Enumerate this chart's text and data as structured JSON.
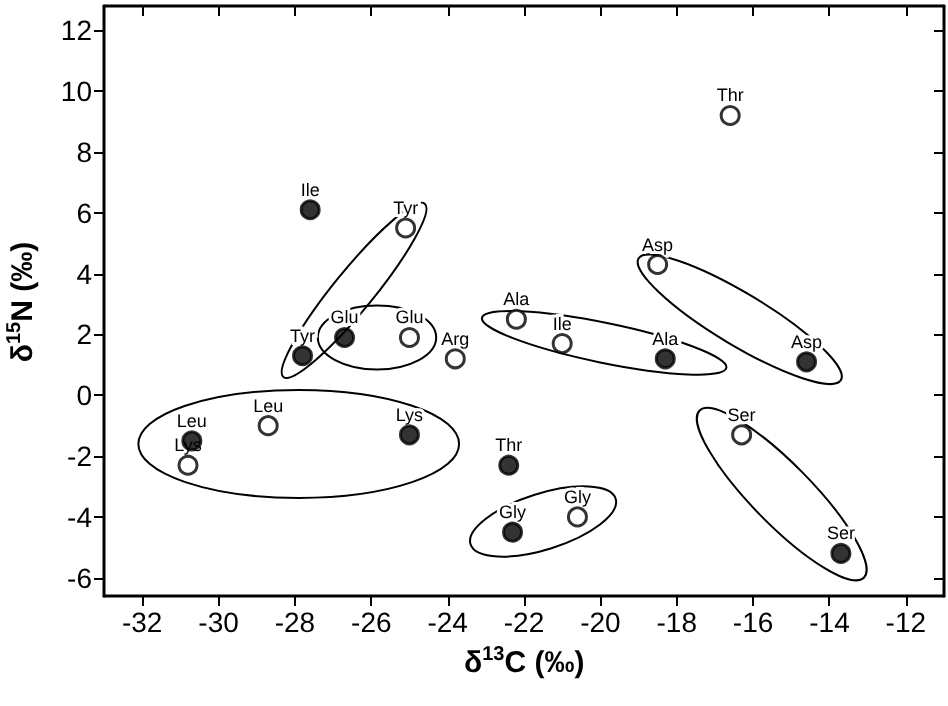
{
  "chart_data": {
    "type": "scatter",
    "xlabel": "δ$^{13}$C (‰)",
    "ylabel": "δ$^{15}$N (‰)",
    "xlim": [
      -33,
      -11
    ],
    "xticks": [
      -32,
      -30,
      -28,
      -26,
      -24,
      -22,
      -20,
      -18,
      -16,
      -14,
      -12
    ],
    "ylim": [
      -6.6,
      12.8
    ],
    "yticks": [
      -6,
      -4,
      -2,
      0,
      2,
      4,
      6,
      8,
      10,
      12
    ],
    "grid": false,
    "marker": "circle",
    "series": [
      {
        "color": "#000000",
        "x": [
          -27.6,
          -27.8,
          -26.7,
          -18.3,
          -14.6,
          -30.7,
          -25.0,
          -22.4,
          -22.3,
          -13.7
        ],
        "values": [
          6.1,
          1.3,
          1.9,
          1.2,
          1.1,
          -1.5,
          -1.3,
          -2.3,
          -4.5,
          -5.2
        ]
      },
      {
        "color": "#ffffff",
        "x": [
          -16.6,
          -25.1,
          -25.0,
          -23.8,
          -22.2,
          -21.0,
          -18.5,
          -28.7,
          -30.8,
          -20.6,
          -16.3
        ],
        "values": [
          9.2,
          5.5,
          1.9,
          1.2,
          2.5,
          1.7,
          4.3,
          -1.0,
          -2.3,
          -4.0,
          -1.3
        ]
      }
    ],
    "annotations": [
      {
        "text": "Ile",
        "x": -27.6,
        "y": 6.1
      },
      {
        "text": "Tyr",
        "x": -27.8,
        "y": 1.3
      },
      {
        "text": "Glu",
        "x": -26.7,
        "y": 1.9
      },
      {
        "text": "Ala",
        "x": -18.3,
        "y": 1.2
      },
      {
        "text": "Asp",
        "x": -14.6,
        "y": 1.1
      },
      {
        "text": "Leu",
        "x": -30.7,
        "y": -1.5
      },
      {
        "text": "Lys",
        "x": -25.0,
        "y": -1.3
      },
      {
        "text": "Thr",
        "x": -22.4,
        "y": -2.3
      },
      {
        "text": "Gly",
        "x": -22.3,
        "y": -4.5
      },
      {
        "text": "Ser",
        "x": -13.7,
        "y": -5.2
      },
      {
        "text": "Thr",
        "x": -16.6,
        "y": 9.2
      },
      {
        "text": "Tyr",
        "x": -25.1,
        "y": 5.5
      },
      {
        "text": "Glu",
        "x": -25.0,
        "y": 1.9
      },
      {
        "text": "Arg",
        "x": -23.8,
        "y": 1.2
      },
      {
        "text": "Ala",
        "x": -22.2,
        "y": 2.5
      },
      {
        "text": "Ile",
        "x": -21.0,
        "y": 1.7
      },
      {
        "text": "Asp",
        "x": -18.5,
        "y": 4.3
      },
      {
        "text": "Leu",
        "x": -28.7,
        "y": -1.0
      },
      {
        "text": "Lys",
        "x": -30.8,
        "y": -2.3
      },
      {
        "text": "Gly",
        "x": -20.6,
        "y": -4.0
      },
      {
        "text": "Ser",
        "x": -16.3,
        "y": -1.3
      }
    ]
  }
}
